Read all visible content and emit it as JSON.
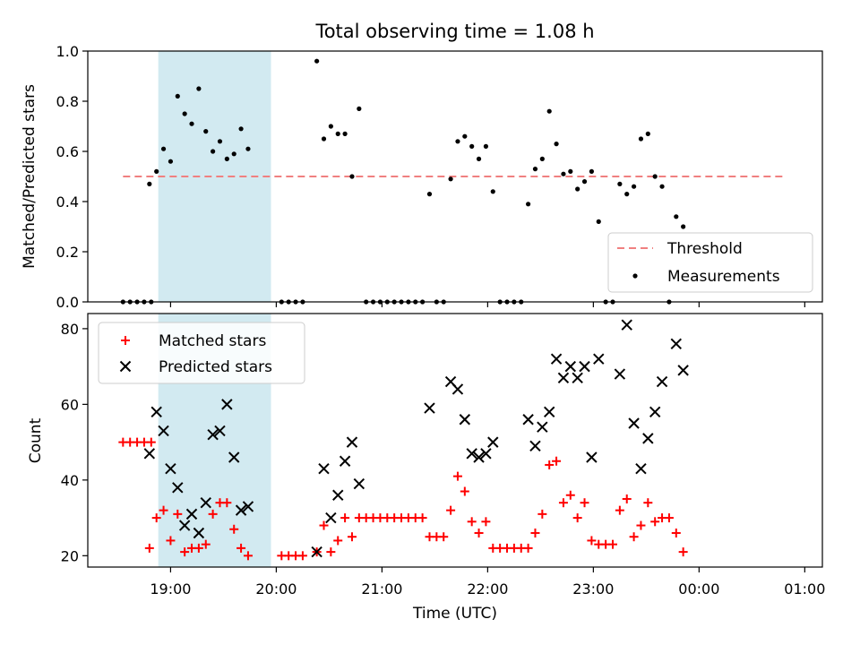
{
  "chart_data": [
    {
      "type": "scatter",
      "title": "Total observing time = 1.08 h",
      "xlabel": "",
      "ylabel": "Matched/Predicted stars",
      "xlim": [
        "18:13",
        "01:10"
      ],
      "ylim": [
        0,
        1.0
      ],
      "yticks": [
        "0.0",
        "0.2",
        "0.4",
        "0.6",
        "0.8",
        "1.0"
      ],
      "grid": false,
      "legend_position": "lower-right",
      "highlight_span": {
        "x0": "18:53",
        "x1": "19:57",
        "color": "#d2eaf1"
      },
      "threshold": {
        "name": "Threshold",
        "y": 0.5,
        "x0": "18:33",
        "x1": "00:48",
        "color": "#f08080"
      },
      "series": [
        {
          "name": "Measurements",
          "marker": "dot",
          "color": "#000000",
          "points": [
            [
              "18:33",
              0.0
            ],
            [
              "18:37",
              0.0
            ],
            [
              "18:41",
              0.0
            ],
            [
              "18:45",
              0.0
            ],
            [
              "18:49",
              0.0
            ],
            [
              "18:48",
              0.47
            ],
            [
              "18:52",
              0.52
            ],
            [
              "18:56",
              0.61
            ],
            [
              "19:00",
              0.56
            ],
            [
              "19:04",
              0.82
            ],
            [
              "19:08",
              0.75
            ],
            [
              "19:12",
              0.71
            ],
            [
              "19:16",
              0.85
            ],
            [
              "19:20",
              0.68
            ],
            [
              "19:24",
              0.6
            ],
            [
              "19:28",
              0.64
            ],
            [
              "19:32",
              0.57
            ],
            [
              "19:36",
              0.59
            ],
            [
              "19:40",
              0.69
            ],
            [
              "19:44",
              0.61
            ],
            [
              "20:03",
              0.0
            ],
            [
              "20:07",
              0.0
            ],
            [
              "20:11",
              0.0
            ],
            [
              "20:15",
              0.0
            ],
            [
              "20:23",
              0.96
            ],
            [
              "20:27",
              0.65
            ],
            [
              "20:31",
              0.7
            ],
            [
              "20:35",
              0.67
            ],
            [
              "20:39",
              0.67
            ],
            [
              "20:43",
              0.5
            ],
            [
              "20:47",
              0.77
            ],
            [
              "20:51",
              0.0
            ],
            [
              "20:55",
              0.0
            ],
            [
              "20:59",
              0.0
            ],
            [
              "21:03",
              0.0
            ],
            [
              "21:07",
              0.0
            ],
            [
              "21:11",
              0.0
            ],
            [
              "21:15",
              0.0
            ],
            [
              "21:19",
              0.0
            ],
            [
              "21:23",
              0.0
            ],
            [
              "21:27",
              0.43
            ],
            [
              "21:31",
              0.0
            ],
            [
              "21:35",
              0.0
            ],
            [
              "21:39",
              0.49
            ],
            [
              "21:43",
              0.64
            ],
            [
              "21:47",
              0.66
            ],
            [
              "21:51",
              0.62
            ],
            [
              "21:55",
              0.57
            ],
            [
              "21:59",
              0.62
            ],
            [
              "22:03",
              0.44
            ],
            [
              "22:07",
              0.0
            ],
            [
              "22:11",
              0.0
            ],
            [
              "22:15",
              0.0
            ],
            [
              "22:19",
              0.0
            ],
            [
              "22:23",
              0.39
            ],
            [
              "22:27",
              0.53
            ],
            [
              "22:31",
              0.57
            ],
            [
              "22:35",
              0.76
            ],
            [
              "22:39",
              0.63
            ],
            [
              "22:43",
              0.51
            ],
            [
              "22:47",
              0.52
            ],
            [
              "22:51",
              0.45
            ],
            [
              "22:55",
              0.48
            ],
            [
              "22:59",
              0.52
            ],
            [
              "23:03",
              0.32
            ],
            [
              "23:07",
              0.0
            ],
            [
              "23:11",
              0.0
            ],
            [
              "23:15",
              0.47
            ],
            [
              "23:19",
              0.43
            ],
            [
              "23:23",
              0.46
            ],
            [
              "23:27",
              0.65
            ],
            [
              "23:31",
              0.67
            ],
            [
              "23:35",
              0.5
            ],
            [
              "23:39",
              0.46
            ],
            [
              "23:43",
              0.0
            ],
            [
              "23:47",
              0.34
            ],
            [
              "23:51",
              0.3
            ]
          ]
        }
      ]
    },
    {
      "type": "scatter",
      "title": "",
      "xlabel": "Time (UTC)",
      "ylabel": "Count",
      "xlim": [
        "18:13",
        "01:10"
      ],
      "ylim": [
        17,
        84
      ],
      "yticks": [
        "20",
        "40",
        "60",
        "80"
      ],
      "xticks": [
        "19:00",
        "20:00",
        "21:00",
        "22:00",
        "23:00",
        "00:00",
        "01:00"
      ],
      "grid": false,
      "legend_position": "upper-left",
      "highlight_span": {
        "x0": "18:53",
        "x1": "19:57",
        "color": "#d2eaf1"
      },
      "series": [
        {
          "name": "Matched stars",
          "marker": "plus",
          "color": "#ff0000",
          "points": [
            [
              "18:33",
              50
            ],
            [
              "18:37",
              50
            ],
            [
              "18:41",
              50
            ],
            [
              "18:45",
              50
            ],
            [
              "18:49",
              50
            ],
            [
              "18:48",
              22
            ],
            [
              "18:52",
              30
            ],
            [
              "18:56",
              32
            ],
            [
              "19:00",
              24
            ],
            [
              "19:04",
              31
            ],
            [
              "19:08",
              21
            ],
            [
              "19:12",
              22
            ],
            [
              "19:16",
              22
            ],
            [
              "19:20",
              23
            ],
            [
              "19:24",
              31
            ],
            [
              "19:28",
              34
            ],
            [
              "19:32",
              34
            ],
            [
              "19:36",
              27
            ],
            [
              "19:40",
              22
            ],
            [
              "19:44",
              20
            ],
            [
              "20:03",
              20
            ],
            [
              "20:07",
              20
            ],
            [
              "20:11",
              20
            ],
            [
              "20:15",
              20
            ],
            [
              "20:23",
              21
            ],
            [
              "20:27",
              28
            ],
            [
              "20:31",
              21
            ],
            [
              "20:35",
              24
            ],
            [
              "20:39",
              30
            ],
            [
              "20:43",
              25
            ],
            [
              "20:47",
              30
            ],
            [
              "20:51",
              30
            ],
            [
              "20:55",
              30
            ],
            [
              "20:59",
              30
            ],
            [
              "21:03",
              30
            ],
            [
              "21:07",
              30
            ],
            [
              "21:11",
              30
            ],
            [
              "21:15",
              30
            ],
            [
              "21:19",
              30
            ],
            [
              "21:23",
              30
            ],
            [
              "21:27",
              25
            ],
            [
              "21:31",
              25
            ],
            [
              "21:35",
              25
            ],
            [
              "21:39",
              32
            ],
            [
              "21:43",
              41
            ],
            [
              "21:47",
              37
            ],
            [
              "21:51",
              29
            ],
            [
              "21:55",
              26
            ],
            [
              "21:59",
              29
            ],
            [
              "22:03",
              22
            ],
            [
              "22:07",
              22
            ],
            [
              "22:11",
              22
            ],
            [
              "22:15",
              22
            ],
            [
              "22:19",
              22
            ],
            [
              "22:23",
              22
            ],
            [
              "22:27",
              26
            ],
            [
              "22:31",
              31
            ],
            [
              "22:35",
              44
            ],
            [
              "22:39",
              45
            ],
            [
              "22:43",
              34
            ],
            [
              "22:47",
              36
            ],
            [
              "22:51",
              30
            ],
            [
              "22:55",
              34
            ],
            [
              "22:59",
              24
            ],
            [
              "23:03",
              23
            ],
            [
              "23:07",
              23
            ],
            [
              "23:11",
              23
            ],
            [
              "23:15",
              32
            ],
            [
              "23:19",
              35
            ],
            [
              "23:23",
              25
            ],
            [
              "23:27",
              28
            ],
            [
              "23:31",
              34
            ],
            [
              "23:35",
              29
            ],
            [
              "23:39",
              30
            ],
            [
              "23:43",
              30
            ],
            [
              "23:47",
              26
            ],
            [
              "23:51",
              21
            ]
          ]
        },
        {
          "name": "Predicted stars",
          "marker": "x",
          "color": "#000000",
          "points": [
            [
              "18:48",
              47
            ],
            [
              "18:52",
              58
            ],
            [
              "18:56",
              53
            ],
            [
              "19:00",
              43
            ],
            [
              "19:04",
              38
            ],
            [
              "19:08",
              28
            ],
            [
              "19:12",
              31
            ],
            [
              "19:16",
              26
            ],
            [
              "19:20",
              34
            ],
            [
              "19:24",
              52
            ],
            [
              "19:28",
              53
            ],
            [
              "19:32",
              60
            ],
            [
              "19:36",
              46
            ],
            [
              "19:40",
              32
            ],
            [
              "19:44",
              33
            ],
            [
              "20:23",
              21
            ],
            [
              "20:27",
              43
            ],
            [
              "20:31",
              30
            ],
            [
              "20:35",
              36
            ],
            [
              "20:39",
              45
            ],
            [
              "20:43",
              50
            ],
            [
              "20:47",
              39
            ],
            [
              "21:27",
              59
            ],
            [
              "21:39",
              66
            ],
            [
              "21:43",
              64
            ],
            [
              "21:47",
              56
            ],
            [
              "21:51",
              47
            ],
            [
              "21:55",
              46
            ],
            [
              "21:59",
              47
            ],
            [
              "22:03",
              50
            ],
            [
              "22:23",
              56
            ],
            [
              "22:27",
              49
            ],
            [
              "22:31",
              54
            ],
            [
              "22:35",
              58
            ],
            [
              "22:39",
              72
            ],
            [
              "22:43",
              67
            ],
            [
              "22:47",
              70
            ],
            [
              "22:51",
              67
            ],
            [
              "22:55",
              70
            ],
            [
              "22:59",
              46
            ],
            [
              "23:03",
              72
            ],
            [
              "23:15",
              68
            ],
            [
              "23:19",
              81
            ],
            [
              "23:23",
              55
            ],
            [
              "23:27",
              43
            ],
            [
              "23:31",
              51
            ],
            [
              "23:35",
              58
            ],
            [
              "23:39",
              66
            ],
            [
              "23:47",
              76
            ],
            [
              "23:51",
              69
            ]
          ]
        }
      ]
    }
  ]
}
